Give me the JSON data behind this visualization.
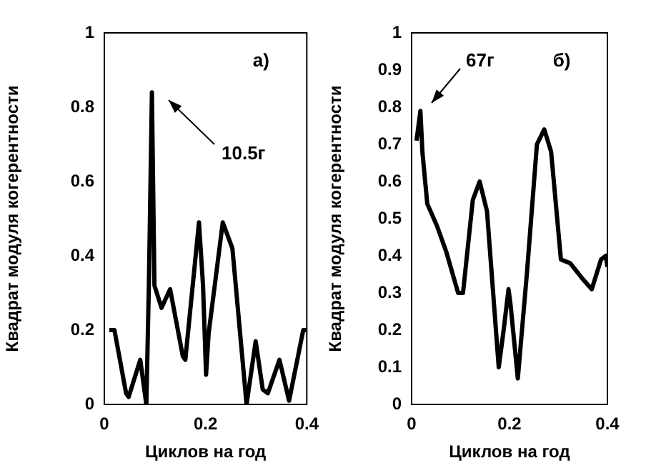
{
  "chart_data": [
    {
      "type": "line",
      "xlabel": "Циклов на год",
      "ylabel": "Квадрат модуля когерентности",
      "color": "#000000",
      "xlim": [
        0,
        0.4
      ],
      "xticks": [
        0,
        0.2,
        0.4
      ],
      "ylim": [
        0,
        1
      ],
      "yticks": [
        0,
        0.2,
        0.4,
        0.6,
        0.8,
        1
      ],
      "legend": false,
      "x": [
        0.01,
        0.02,
        0.043,
        0.048,
        0.071,
        0.083,
        0.088,
        0.094,
        0.099,
        0.113,
        0.13,
        0.155,
        0.16,
        0.187,
        0.195,
        0.201,
        0.206,
        0.234,
        0.253,
        0.281,
        0.299,
        0.313,
        0.323,
        0.346,
        0.365,
        0.393,
        0.4
      ],
      "values": [
        0.2,
        0.2,
        0.03,
        0.02,
        0.12,
        0,
        0.32,
        0.84,
        0.32,
        0.26,
        0.31,
        0.13,
        0.12,
        0.49,
        0.32,
        0.08,
        0.19,
        0.49,
        0.42,
        0,
        0.17,
        0.04,
        0.03,
        0.12,
        0.01,
        0.2,
        0.2
      ],
      "annotations": [
        "а)",
        "10.5г"
      ]
    },
    {
      "type": "line",
      "xlabel": "Циклов на год",
      "ylabel": "Квадрат модуля когерентности",
      "color": "#000000",
      "xlim": [
        0,
        0.4
      ],
      "xticks": [
        0,
        0.2,
        0.4
      ],
      "ylim": [
        0,
        1
      ],
      "yticks": [
        0,
        0.1,
        0.2,
        0.3,
        0.4,
        0.5,
        0.6,
        0.7,
        0.8,
        0.9,
        1
      ],
      "legend": false,
      "x": [
        0.01,
        0.018,
        0.022,
        0.032,
        0.052,
        0.071,
        0.095,
        0.105,
        0.125,
        0.139,
        0.154,
        0.178,
        0.188,
        0.198,
        0.202,
        0.217,
        0.236,
        0.256,
        0.271,
        0.285,
        0.305,
        0.324,
        0.348,
        0.368,
        0.387,
        0.397,
        0.4
      ],
      "values": [
        0.71,
        0.79,
        0.68,
        0.54,
        0.48,
        0.41,
        0.3,
        0.3,
        0.55,
        0.6,
        0.52,
        0.1,
        0.2,
        0.31,
        0.27,
        0.07,
        0.36,
        0.7,
        0.74,
        0.68,
        0.39,
        0.38,
        0.34,
        0.31,
        0.39,
        0.4,
        0.37
      ],
      "annotations": [
        "б)",
        "67г"
      ]
    }
  ]
}
